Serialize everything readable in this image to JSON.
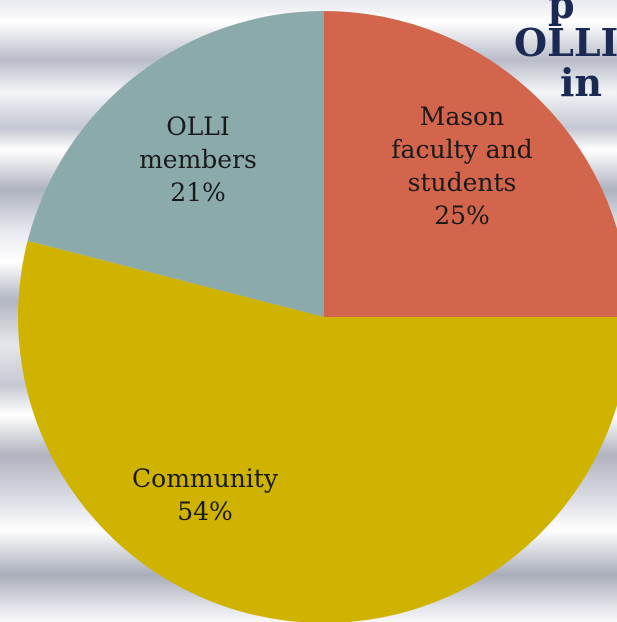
{
  "chart_data": {
    "type": "pie",
    "title_fragments": [
      "p",
      "OLLI",
      "in"
    ],
    "slices": [
      {
        "label_lines": [
          "Mason",
          "faculty and",
          "students"
        ],
        "value_label": "25%",
        "value": 25,
        "color": "#d2654c"
      },
      {
        "label_lines": [
          "Community"
        ],
        "value_label": "54%",
        "value": 54,
        "color": "#cfb300"
      },
      {
        "label_lines": [
          "OLLI",
          "members"
        ],
        "value_label": "21%",
        "value": 21,
        "color": "#8babab"
      }
    ]
  }
}
